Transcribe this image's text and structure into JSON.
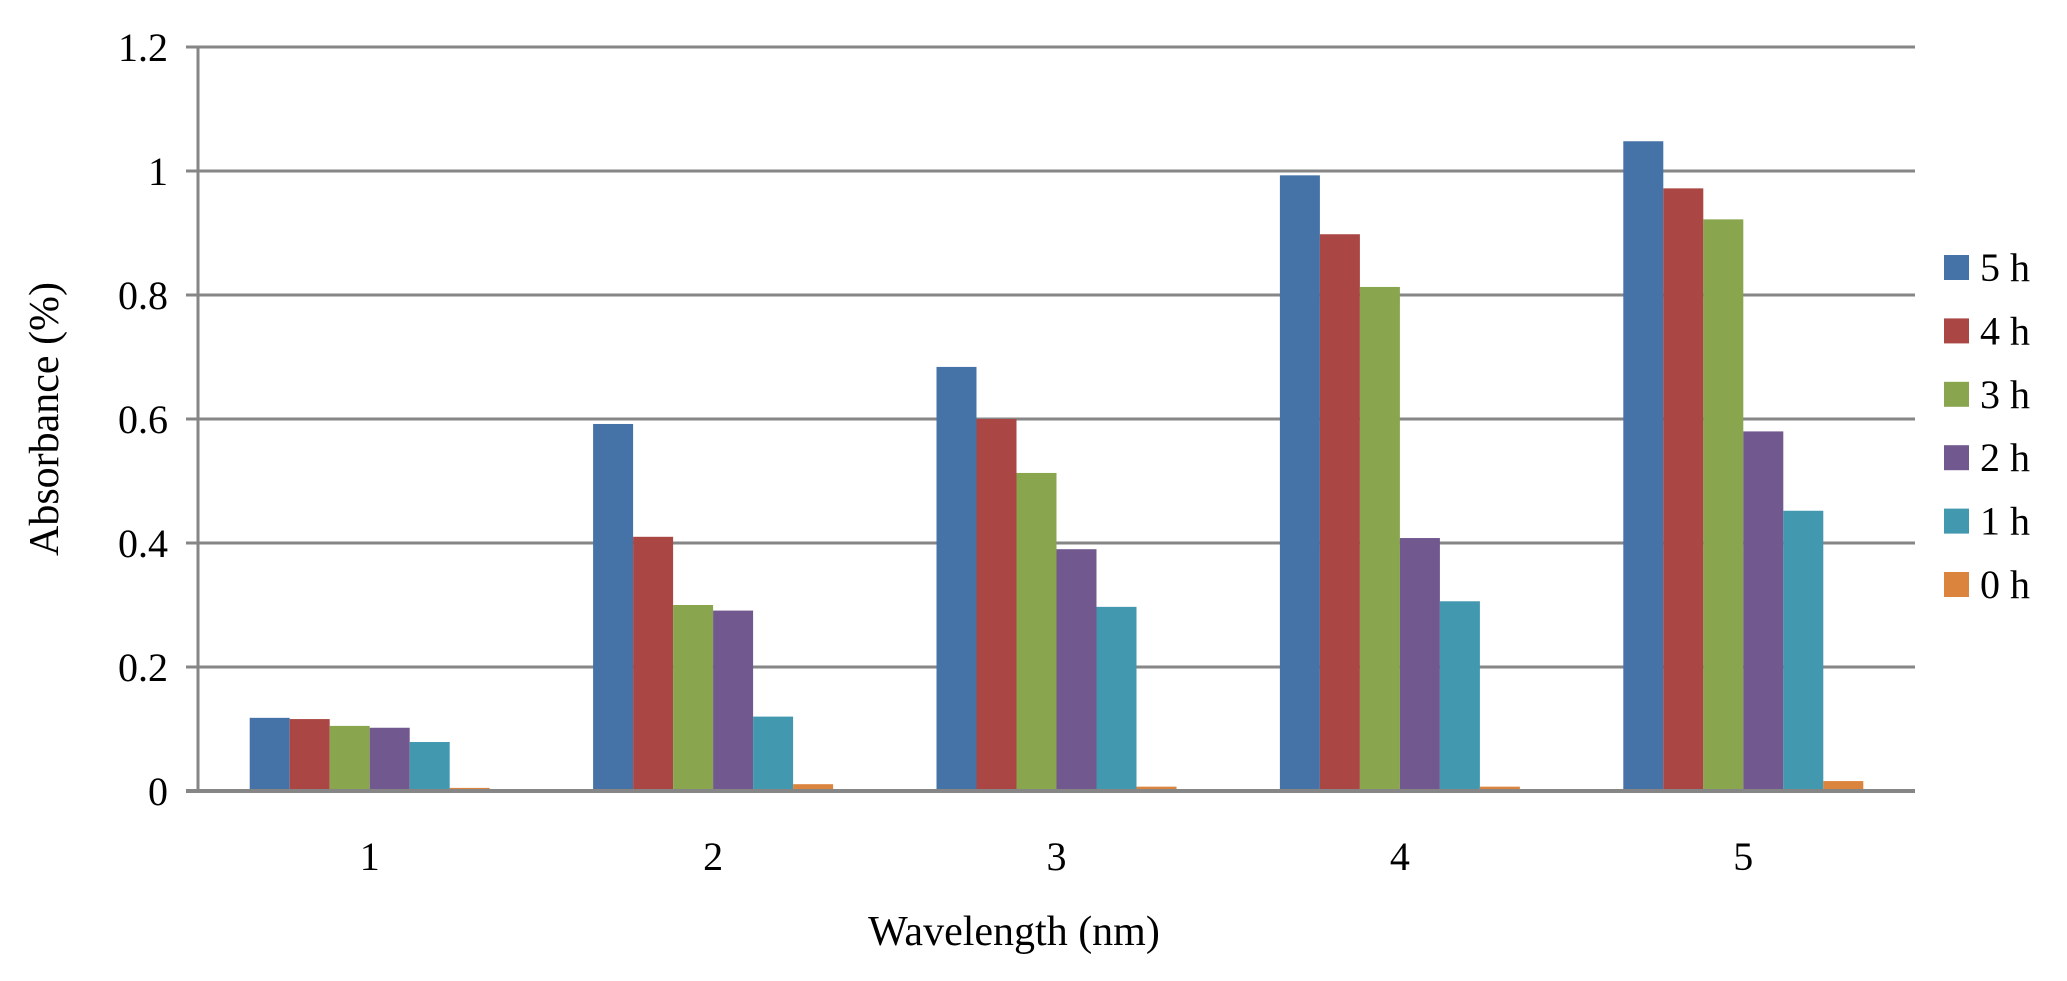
{
  "chart_data": {
    "type": "bar",
    "title": "",
    "xlabel": "Wavelength (nm)",
    "ylabel": "Absorbance (%)",
    "categories": [
      "1",
      "2",
      "3",
      "4",
      "5"
    ],
    "ylim": [
      0,
      1.2
    ],
    "yticks": [
      "0",
      "0.2",
      "0.4",
      "0.6",
      "0.8",
      "1",
      "1.2"
    ],
    "ytick_values": [
      0,
      0.2,
      0.4,
      0.6,
      0.8,
      1.0,
      1.2
    ],
    "grid": true,
    "legend_position": "right",
    "series": [
      {
        "name": "5 h",
        "color": "#4572A7",
        "values": [
          0.118,
          0.592,
          0.684,
          0.993,
          1.048
        ]
      },
      {
        "name": "4 h",
        "color": "#AA4643",
        "values": [
          0.116,
          0.41,
          0.6,
          0.898,
          0.972
        ]
      },
      {
        "name": "3 h",
        "color": "#89A54E",
        "values": [
          0.105,
          0.3,
          0.513,
          0.813,
          0.922
        ]
      },
      {
        "name": "2 h",
        "color": "#71588F",
        "values": [
          0.102,
          0.291,
          0.39,
          0.408,
          0.58
        ]
      },
      {
        "name": "1 h",
        "color": "#4198AF",
        "values": [
          0.079,
          0.12,
          0.297,
          0.306,
          0.452
        ]
      },
      {
        "name": "0 h",
        "color": "#DB843D",
        "values": [
          0.005,
          0.011,
          0.007,
          0.007,
          0.016
        ]
      }
    ]
  }
}
